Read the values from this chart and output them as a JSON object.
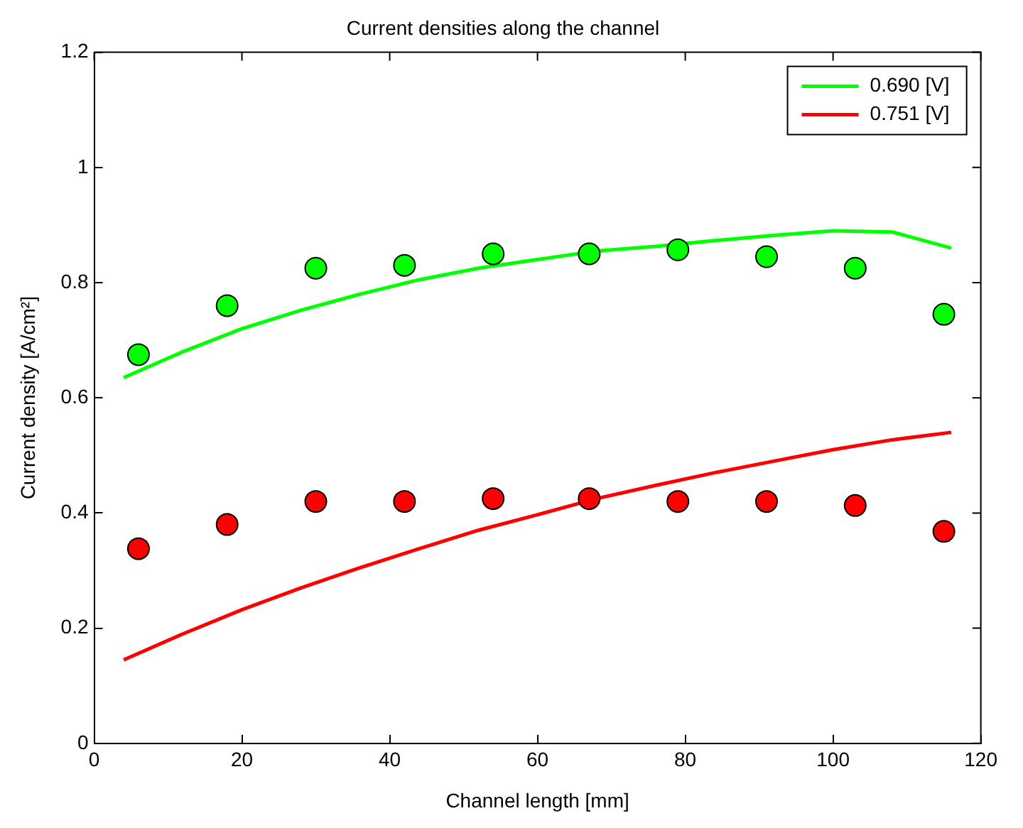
{
  "chart_data": {
    "type": "line",
    "title": "Current densities along the channel",
    "xlabel": "Channel length [mm]",
    "ylabel": "Current density [A/cm²]",
    "xlim": [
      0,
      120
    ],
    "xticks": [
      0,
      20,
      40,
      60,
      80,
      100,
      120
    ],
    "ylim": [
      0,
      1.2
    ],
    "yticks": [
      0,
      0.2,
      0.4,
      0.6,
      0.8,
      1,
      1.2
    ],
    "grid": false,
    "legend": "top right",
    "line_style": "solid",
    "series": [
      {
        "name": "0.690 [V]",
        "color": "#00ff00",
        "type": "line",
        "marker": "none",
        "x": [
          4,
          12,
          20,
          28,
          36,
          44,
          52,
          60,
          68,
          76,
          84,
          92,
          100,
          108,
          116
        ],
        "values": [
          0.635,
          0.68,
          0.72,
          0.752,
          0.78,
          0.805,
          0.825,
          0.84,
          0.855,
          0.863,
          0.873,
          0.882,
          0.89,
          0.888,
          0.86
        ]
      },
      {
        "name": "0.751 [V]",
        "color": "#ff0000",
        "type": "line",
        "marker": "none",
        "x": [
          4,
          12,
          20,
          28,
          36,
          44,
          52,
          60,
          68,
          76,
          84,
          92,
          100,
          108,
          116
        ],
        "values": [
          0.145,
          0.19,
          0.232,
          0.27,
          0.305,
          0.338,
          0.37,
          0.397,
          0.425,
          0.448,
          0.47,
          0.49,
          0.51,
          0.527,
          0.54
        ]
      },
      {
        "color": "#00ff00",
        "type": "scatter",
        "marker": "circle",
        "x": [
          6,
          18,
          30,
          42,
          54,
          67,
          79,
          91,
          103,
          115
        ],
        "values": [
          0.675,
          0.76,
          0.825,
          0.83,
          0.85,
          0.85,
          0.857,
          0.845,
          0.825,
          0.745
        ]
      },
      {
        "color": "#ff0000",
        "type": "scatter",
        "marker": "circle",
        "x": [
          6,
          18,
          30,
          42,
          54,
          67,
          79,
          91,
          103,
          115
        ],
        "values": [
          0.338,
          0.38,
          0.42,
          0.42,
          0.425,
          0.425,
          0.42,
          0.42,
          0.413,
          0.368
        ]
      }
    ]
  }
}
